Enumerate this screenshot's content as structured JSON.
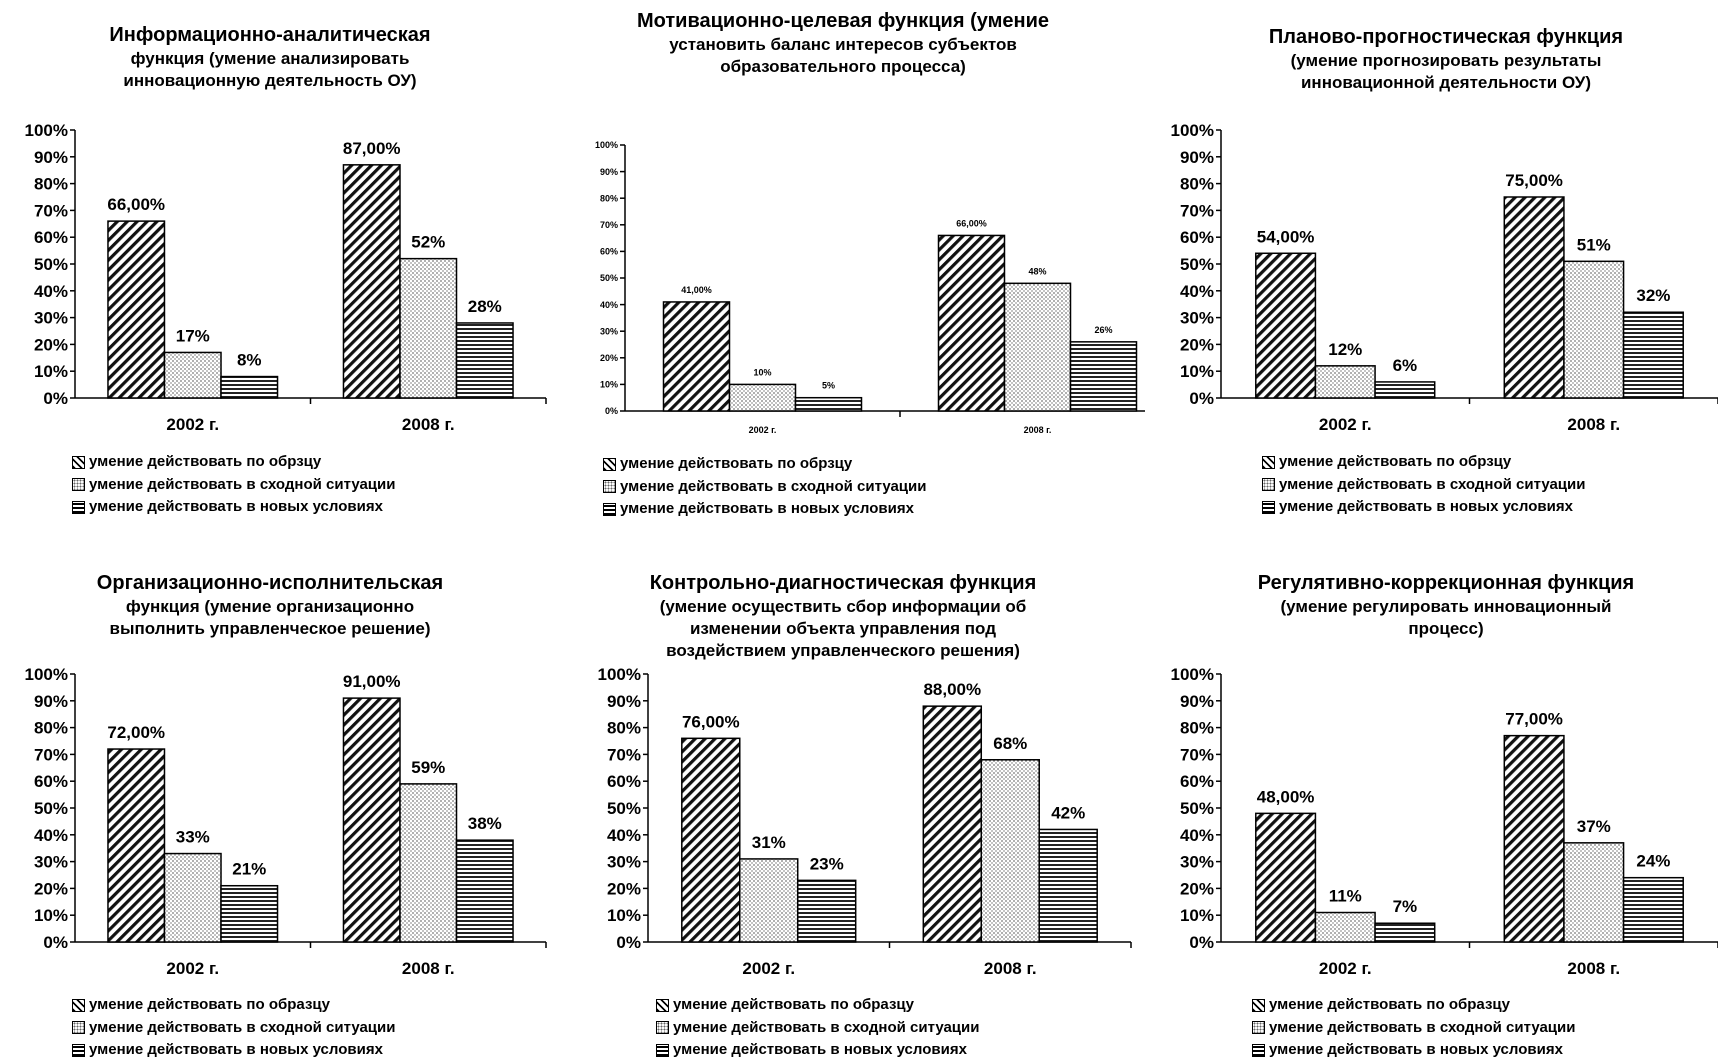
{
  "chart_data": [
    {
      "type": "bar",
      "title": "Информационно-аналитическая",
      "subtitle_lines": [
        "функция (умение анализировать",
        "инновационную деятельность ОУ)"
      ],
      "categories": [
        "2002 г.",
        "2008 г."
      ],
      "yticks": [
        "0%",
        "10%",
        "20%",
        "30%",
        "40%",
        "50%",
        "60%",
        "70%",
        "80%",
        "90%",
        "100%"
      ],
      "ylim": [
        0,
        100
      ],
      "series": [
        {
          "values": [
            66,
            87
          ],
          "labels": [
            "66,00%",
            "87,00%"
          ],
          "pattern": "diag"
        },
        {
          "values": [
            17,
            52
          ],
          "labels": [
            "17%",
            "52%"
          ],
          "pattern": "dots"
        },
        {
          "values": [
            8,
            28
          ],
          "labels": [
            "8%",
            "28%"
          ],
          "pattern": "horiz"
        }
      ],
      "legend": [
        "умение действовать по обрзцу",
        "умение действовать в сходной ситуации",
        "умение действовать  в новых условиях"
      ]
    },
    {
      "type": "bar",
      "title": "Мотивационно-целевая функция  (умение",
      "subtitle_lines": [
        "установить баланс интересов субъектов",
        "образовательного процесса)"
      ],
      "categories": [
        "2002 г.",
        "2008 г."
      ],
      "yticks": [
        "0%",
        "10%",
        "20%",
        "30%",
        "40%",
        "50%",
        "60%",
        "70%",
        "80%",
        "90%",
        "100%"
      ],
      "ylim": [
        0,
        100
      ],
      "series": [
        {
          "values": [
            41,
            66
          ],
          "labels": [
            "41,00%",
            "66,00%"
          ],
          "pattern": "diag"
        },
        {
          "values": [
            10,
            48
          ],
          "labels": [
            "10%",
            "48%"
          ],
          "pattern": "dots"
        },
        {
          "values": [
            5,
            26
          ],
          "labels": [
            "5%",
            "26%"
          ],
          "pattern": "horiz"
        }
      ],
      "legend": [
        "умение действовать по обрзцу",
        "умение действовать в сходной ситуации",
        "умение действовать в новых условиях"
      ]
    },
    {
      "type": "bar",
      "title": "Планово-прогностическая функция",
      "subtitle_lines": [
        "(умение прогнозировать результаты",
        "инновационной деятельности ОУ)"
      ],
      "categories": [
        "2002 г.",
        "2008 г."
      ],
      "yticks": [
        "0%",
        "10%",
        "20%",
        "30%",
        "40%",
        "50%",
        "60%",
        "70%",
        "80%",
        "90%",
        "100%"
      ],
      "ylim": [
        0,
        100
      ],
      "series": [
        {
          "values": [
            54,
            75
          ],
          "labels": [
            "54,00%",
            "75,00%"
          ],
          "pattern": "diag"
        },
        {
          "values": [
            12,
            51
          ],
          "labels": [
            "12%",
            "51%"
          ],
          "pattern": "dots"
        },
        {
          "values": [
            6,
            32
          ],
          "labels": [
            "6%",
            "32%"
          ],
          "pattern": "horiz"
        }
      ],
      "legend": [
        "умение действовать по обрзцу",
        "умение действовать в сходной ситуации",
        "умение действовать в новых условиях"
      ]
    },
    {
      "type": "bar",
      "title": "Организационно-исполнительская",
      "subtitle_lines": [
        "функция (умение  организационно",
        "выполнить управленческое решение)"
      ],
      "categories": [
        "2002 г.",
        "2008 г."
      ],
      "yticks": [
        "0%",
        "10%",
        "20%",
        "30%",
        "40%",
        "50%",
        "60%",
        "70%",
        "80%",
        "90%",
        "100%"
      ],
      "ylim": [
        0,
        100
      ],
      "series": [
        {
          "values": [
            72,
            91
          ],
          "labels": [
            "72,00%",
            "91,00%"
          ],
          "pattern": "diag"
        },
        {
          "values": [
            33,
            59
          ],
          "labels": [
            "33%",
            "59%"
          ],
          "pattern": "dots"
        },
        {
          "values": [
            21,
            38
          ],
          "labels": [
            "21%",
            "38%"
          ],
          "pattern": "horiz"
        }
      ],
      "legend": [
        "умение действовать по образцу",
        "умение действовать в сходной ситуации",
        "умение действовать в новых условиях"
      ]
    },
    {
      "type": "bar",
      "title": "Контрольно-диагностическая функция",
      "subtitle_lines": [
        "(умение  осуществить сбор информации об",
        "изменении объекта управления под",
        "воздействием управленческого решения)"
      ],
      "categories": [
        "2002 г.",
        "2008 г."
      ],
      "yticks": [
        "0%",
        "10%",
        "20%",
        "30%",
        "40%",
        "50%",
        "60%",
        "70%",
        "80%",
        "90%",
        "100%"
      ],
      "ylim": [
        0,
        100
      ],
      "series": [
        {
          "values": [
            76,
            88
          ],
          "labels": [
            "76,00%",
            "88,00%"
          ],
          "pattern": "diag"
        },
        {
          "values": [
            31,
            68
          ],
          "labels": [
            "31%",
            "68%"
          ],
          "pattern": "dots"
        },
        {
          "values": [
            23,
            42
          ],
          "labels": [
            "23%",
            "42%"
          ],
          "pattern": "horiz"
        }
      ],
      "legend": [
        "умение действовать по образцу",
        "умение действовать в сходной ситуации",
        "умение действовать в новых условиях"
      ]
    },
    {
      "type": "bar",
      "title": "Регулятивно-коррекционная функция",
      "subtitle_lines": [
        "(умение регулировать инновационный",
        "процесс)"
      ],
      "categories": [
        "2002 г.",
        "2008 г."
      ],
      "yticks": [
        "0%",
        "10%",
        "20%",
        "30%",
        "40%",
        "50%",
        "60%",
        "70%",
        "80%",
        "90%",
        "100%"
      ],
      "ylim": [
        0,
        100
      ],
      "series": [
        {
          "values": [
            48,
            77
          ],
          "labels": [
            "48,00%",
            "77,00%"
          ],
          "pattern": "diag"
        },
        {
          "values": [
            11,
            37
          ],
          "labels": [
            "11%",
            "37%"
          ],
          "pattern": "dots"
        },
        {
          "values": [
            7,
            24
          ],
          "labels": [
            "7%",
            "24%"
          ],
          "pattern": "horiz"
        }
      ],
      "legend": [
        "умение действовать по образцу",
        "умение действовать в сходной ситуации",
        "умение действовать в новых условиях"
      ]
    }
  ]
}
